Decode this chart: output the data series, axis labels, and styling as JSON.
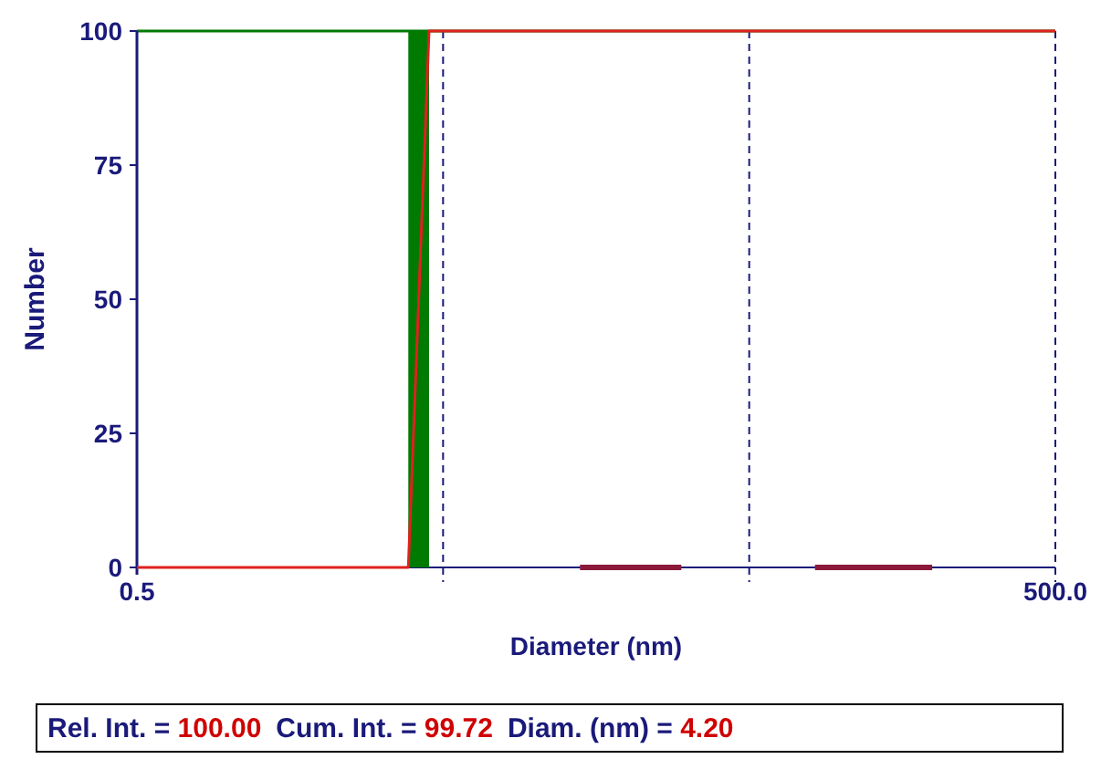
{
  "chart_data": {
    "type": "histogram",
    "xlabel": "Diameter (nm)",
    "ylabel": "Number",
    "log": "x",
    "xlim": [
      0.5,
      500
    ],
    "ylim": [
      0,
      100
    ],
    "xticks": [
      {
        "value": 0.5,
        "label": "0.5"
      },
      {
        "value": 500,
        "label": "500.0"
      }
    ],
    "yticks": [
      0,
      25,
      50,
      75,
      100
    ],
    "ref_lines": [
      {
        "axis": "x",
        "value": 5,
        "line_style": "dashed",
        "color": "#1a1a7a"
      },
      {
        "axis": "x",
        "value": 50,
        "line_style": "dashed",
        "color": "#1a1a7a"
      },
      {
        "axis": "x",
        "value": 500,
        "line_style": "dashed",
        "color": "#1a1a7a"
      }
    ],
    "series": [
      {
        "color": "#007a00",
        "bins": [
          3.85,
          4.5
        ],
        "values": [
          100
        ]
      },
      {
        "type": "line",
        "color": "#e02020",
        "x": [
          0.5,
          3.85,
          4.5,
          500
        ],
        "values": [
          0,
          0,
          100,
          100
        ]
      },
      {
        "type": "line",
        "color": "#8b1a3a",
        "x": [
          14,
          30
        ],
        "values": [
          0,
          0
        ]
      },
      {
        "type": "line",
        "color": "#8b1a3a",
        "x": [
          82,
          198
        ],
        "values": [
          0,
          0
        ]
      }
    ],
    "annotations": [
      "Rel. Int. = 100.00",
      "Cum. Int. = 99.72",
      "Diam. (nm)  =  4.20"
    ]
  }
}
